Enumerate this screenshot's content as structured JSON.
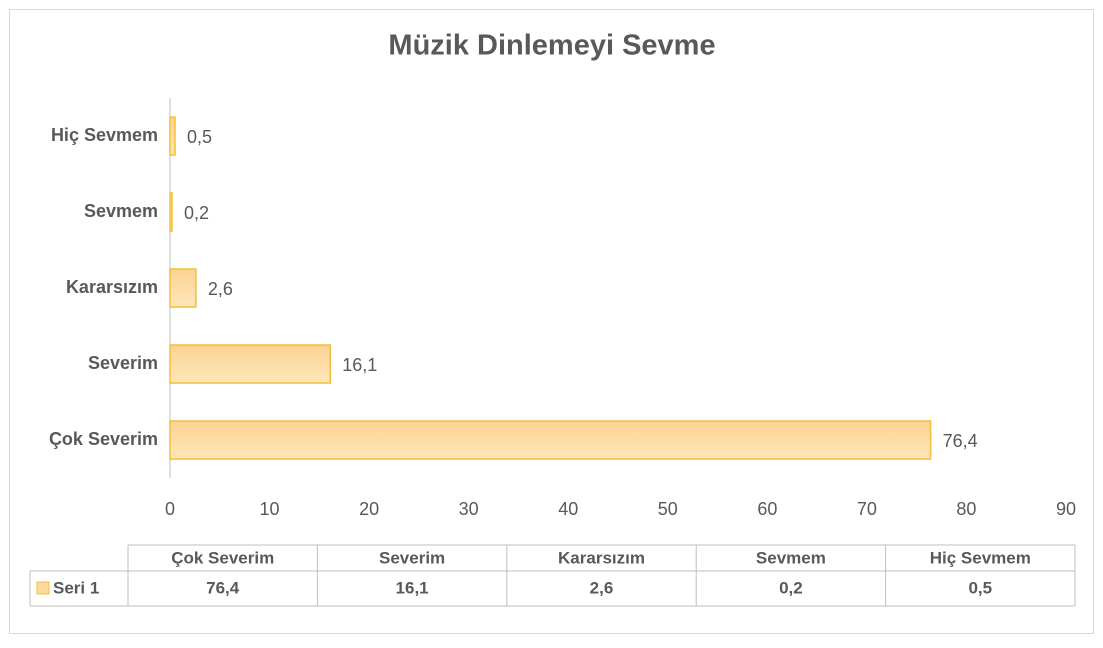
{
  "chart_data": {
    "type": "bar",
    "orientation": "horizontal",
    "title": "Müzik Dinlemeyi Sevme",
    "categories": [
      "Çok Severim",
      "Severim",
      "Kararsızım",
      "Sevmem",
      "Hiç Sevmem"
    ],
    "series": [
      {
        "name": "Seri 1",
        "color": "#fdd99b",
        "values": [
          76.4,
          16.1,
          2.6,
          0.2,
          0.5
        ],
        "value_labels": [
          "76,4",
          "16,1",
          "2,6",
          "0,2",
          "0,5"
        ]
      }
    ],
    "xlim": [
      0,
      90
    ],
    "xticks": [
      0,
      10,
      20,
      30,
      40,
      50,
      60,
      70,
      80,
      90
    ],
    "grid": false
  }
}
